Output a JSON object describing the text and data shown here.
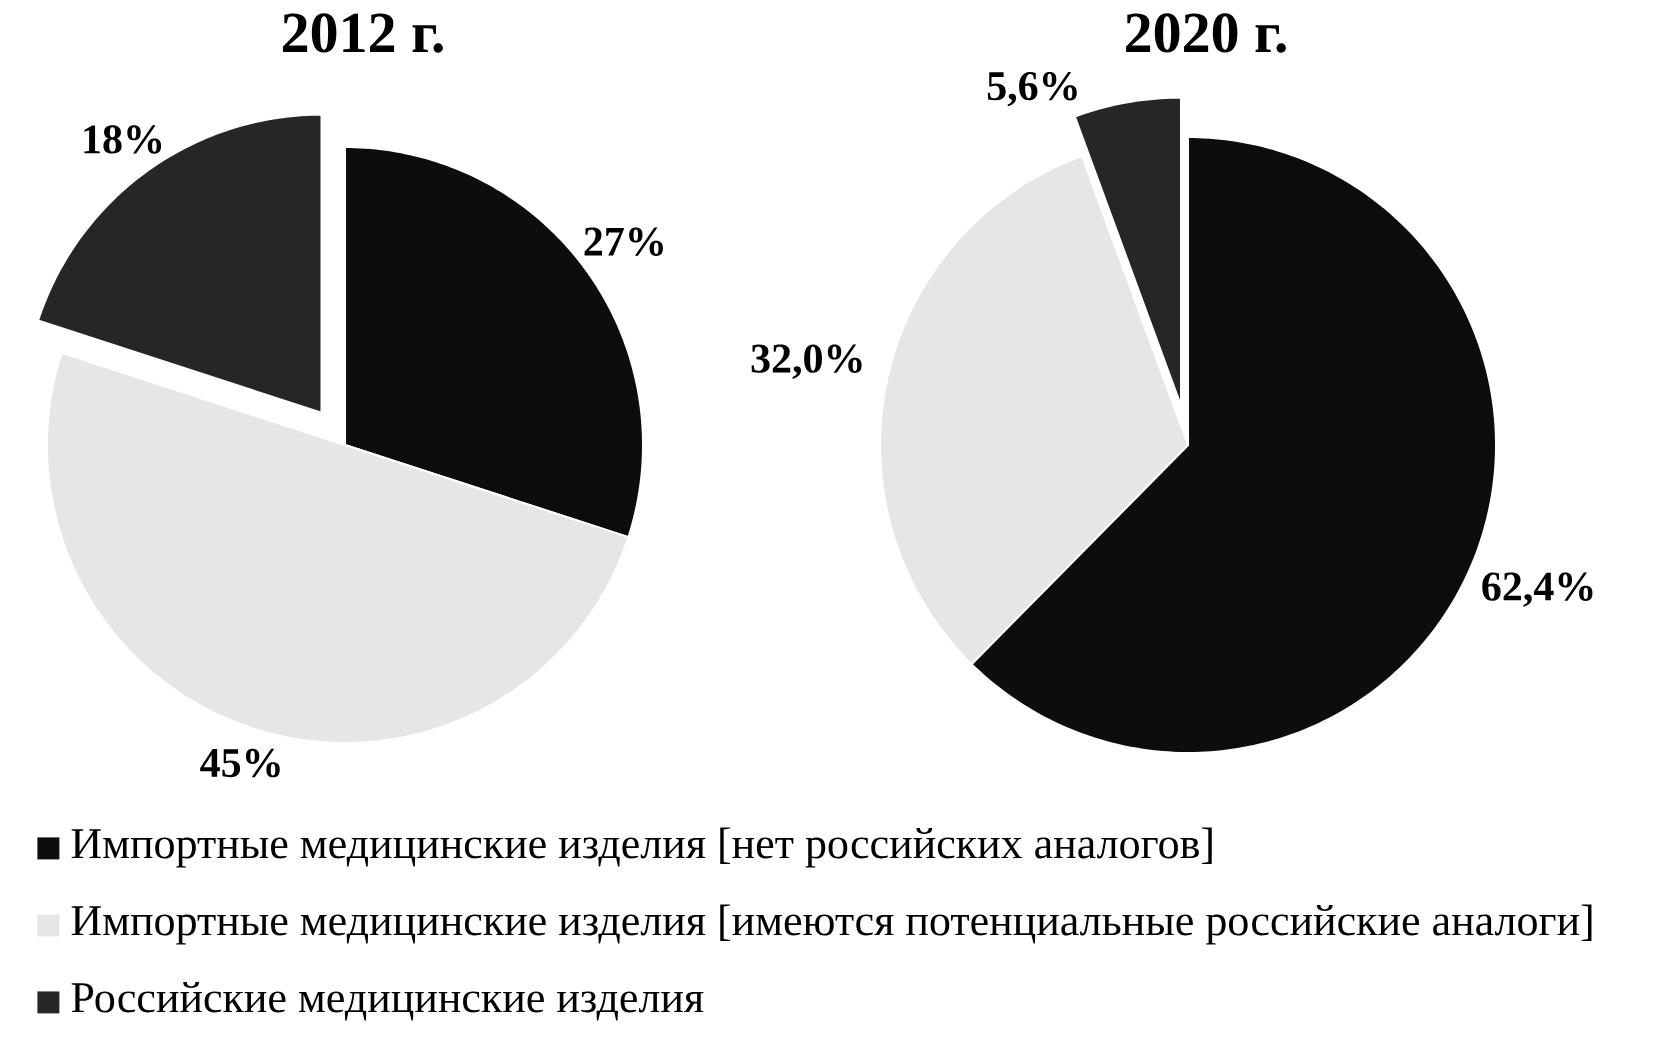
{
  "chart_data": [
    {
      "type": "pie",
      "title": "2012 г.",
      "categories": [
        "Импортные медицинские изделия [нет российских аналогов]",
        "Импортные медицинские изделия [имеются потенциальные российские аналоги]",
        "Российские медицинские изделия"
      ],
      "values": [
        27,
        45,
        18
      ],
      "colors": [
        "#0d0d0d",
        "#e6e6e6",
        "#262626"
      ],
      "value_labels": [
        "27%",
        "45%",
        "18%"
      ],
      "legend": "bottom"
    },
    {
      "type": "pie",
      "title": "2020 г.",
      "categories": [
        null,
        null,
        null
      ],
      "values": [
        62.4,
        32.0,
        5.6
      ],
      "colors": [
        "#0d0d0d",
        "#e6e6e6",
        "#262626"
      ],
      "value_labels": [
        "62,4%",
        "32,0%",
        "5,6%"
      ]
    }
  ]
}
